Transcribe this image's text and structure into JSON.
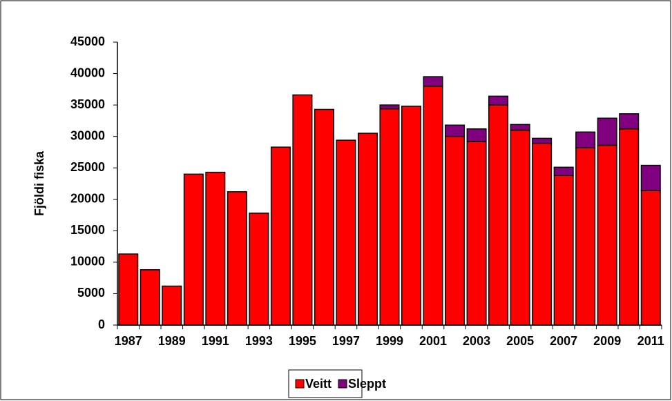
{
  "chart_data": {
    "type": "stacked_bar",
    "y_label": "Fjöldi fiska",
    "categories": [
      "1987",
      null,
      "1989",
      null,
      "1991",
      null,
      "1993",
      null,
      "1995",
      null,
      "1997",
      null,
      "1999",
      null,
      "2001",
      null,
      "2003",
      null,
      "2005",
      null,
      "2007",
      null,
      "2009",
      null,
      "2011"
    ],
    "series": [
      {
        "name": "Veitt",
        "color": "#ff0000",
        "values": [
          11300,
          8800,
          6200,
          24000,
          24300,
          21200,
          17800,
          28300,
          36600,
          34300,
          29400,
          30500,
          34400,
          34800,
          38000,
          30000,
          29200,
          35000,
          31000,
          28900,
          23800,
          28200,
          28600,
          31200,
          21400
        ]
      },
      {
        "name": "Sleppt",
        "color": "#800080",
        "values": [
          0,
          0,
          0,
          0,
          0,
          0,
          0,
          0,
          0,
          0,
          0,
          0,
          600,
          0,
          1500,
          1800,
          2000,
          1400,
          900,
          800,
          1300,
          2500,
          4300,
          2400,
          4000
        ]
      }
    ],
    "ylim": [
      0,
      45000
    ],
    "yticks": [
      0,
      5000,
      10000,
      15000,
      20000,
      25000,
      30000,
      35000,
      40000,
      45000
    ],
    "grid": false,
    "legend": "bottom"
  }
}
